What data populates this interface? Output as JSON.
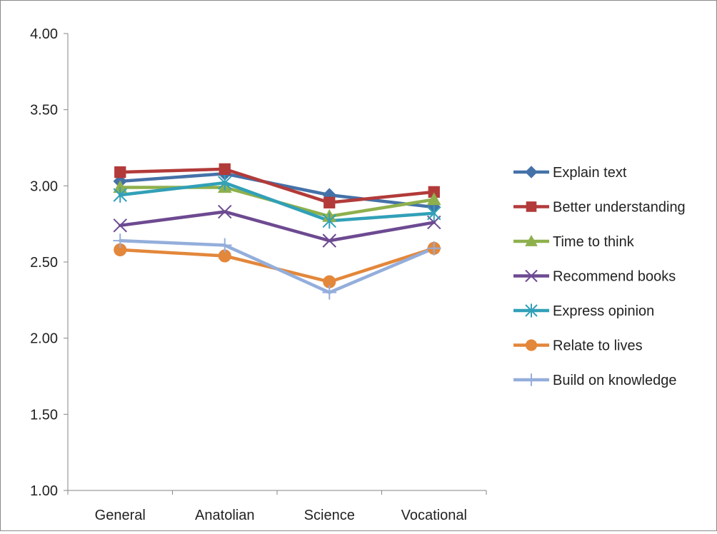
{
  "chart_data": {
    "type": "line",
    "categories": [
      "General",
      "Anatolian",
      "Science",
      "Vocational"
    ],
    "ylim": [
      1.0,
      4.0
    ],
    "yticks": [
      1.0,
      1.5,
      2.0,
      2.5,
      3.0,
      3.5,
      4.0
    ],
    "ytick_labels": [
      "1.00",
      "1.50",
      "2.00",
      "2.50",
      "3.00",
      "3.50",
      "4.00"
    ],
    "grid": false,
    "legend_position": "right",
    "series": [
      {
        "name": "Explain text",
        "values": [
          3.03,
          3.08,
          2.94,
          2.86
        ],
        "color": "#4472a8",
        "marker": "diamond"
      },
      {
        "name": "Better understanding",
        "values": [
          3.09,
          3.11,
          2.89,
          2.96
        ],
        "color": "#b23b3a",
        "marker": "square"
      },
      {
        "name": "Time to think",
        "values": [
          2.99,
          2.99,
          2.8,
          2.91
        ],
        "color": "#8eb04c",
        "marker": "triangle"
      },
      {
        "name": "Recommend books",
        "values": [
          2.74,
          2.83,
          2.64,
          2.76
        ],
        "color": "#6d4a91",
        "marker": "x"
      },
      {
        "name": "Express opinion",
        "values": [
          2.94,
          3.02,
          2.77,
          2.82
        ],
        "color": "#31a0b8",
        "marker": "asterisk"
      },
      {
        "name": "Relate to lives",
        "values": [
          2.58,
          2.54,
          2.37,
          2.59
        ],
        "color": "#e3873b",
        "marker": "circle"
      },
      {
        "name": "Build on knowledge",
        "values": [
          2.64,
          2.61,
          2.3,
          2.59
        ],
        "color": "#94aedb",
        "marker": "plus"
      }
    ]
  }
}
